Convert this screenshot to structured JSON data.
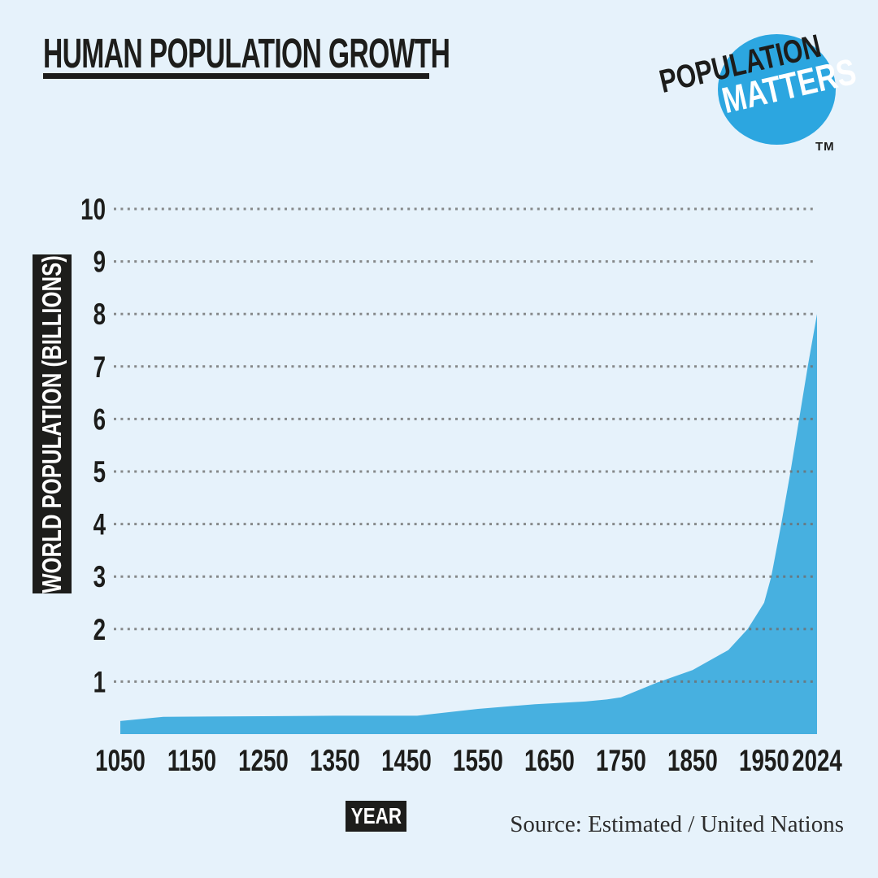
{
  "page": {
    "background_color": "#e6f2fb",
    "title": "HUMAN POPULATION GROWTH",
    "logo": {
      "line1": "POPULATION",
      "line2": "MATTERS",
      "trademark": "TM",
      "circle_color": "#2ca6e0"
    },
    "source_note": "Source: Estimated / United Nations"
  },
  "chart_data": {
    "type": "area",
    "title": "HUMAN POPULATION GROWTH",
    "xlabel": "YEAR",
    "ylabel": "WORLD POPULATION (BILLIONS)",
    "x_tick_labels": [
      "1050",
      "1150",
      "1250",
      "1350",
      "1450",
      "1550",
      "1650",
      "1750",
      "1850",
      "1950",
      "2024"
    ],
    "x_tick_years": [
      1050,
      1150,
      1250,
      1350,
      1450,
      1550,
      1650,
      1750,
      1850,
      1950,
      2024
    ],
    "y_ticks": [
      1,
      2,
      3,
      4,
      5,
      6,
      7,
      8,
      9,
      10
    ],
    "xlim": [
      1050,
      2024
    ],
    "ylim": [
      0,
      10
    ],
    "grid": "horizontal dotted",
    "legend_position": "none",
    "series": [
      {
        "name": "World population (billions)",
        "x": [
          1050,
          1110,
          1250,
          1350,
          1465,
          1550,
          1630,
          1700,
          1730,
          1750,
          1800,
          1850,
          1900,
          1927,
          1950,
          1960,
          1974,
          1987,
          1999,
          2011,
          2024
        ],
        "y": [
          0.25,
          0.33,
          0.34,
          0.35,
          0.35,
          0.48,
          0.57,
          0.62,
          0.66,
          0.7,
          0.98,
          1.22,
          1.6,
          2.0,
          2.5,
          3.0,
          4.0,
          5.0,
          6.0,
          7.0,
          8.0
        ]
      }
    ],
    "colors": {
      "area": "#47b0e0",
      "grid_dots": "#6f6f6f",
      "tick_text": "#1d1d1b"
    },
    "source": "Source: Estimated / United Nations"
  }
}
